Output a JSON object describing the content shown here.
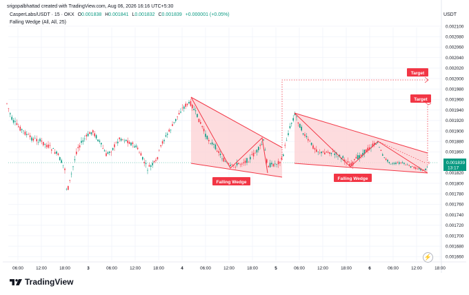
{
  "caption": "srigopalbhattad created with TradingView.com, Aug 06, 2026 16:16 UTC+5:30",
  "symbol": "CasperLabs/USDT · 15 · OKX",
  "ohlc": {
    "open_label": "O",
    "open": "0.001838",
    "high_label": "H",
    "high": "0.001841",
    "low_label": "L",
    "low": "0.001832",
    "close_label": "C",
    "close": "0.001839",
    "change": "+0.000001 (+0.05%)"
  },
  "indicator": "Falling Wedge (All, All, 25)",
  "currency": "USDT",
  "price_axis": [
    "0.002100",
    "0.002080",
    "0.002060",
    "0.002040",
    "0.002020",
    "0.002000",
    "0.001980",
    "0.001960",
    "0.001940",
    "0.001920",
    "0.001900",
    "0.001880",
    "0.001860",
    "0.001820",
    "0.001800",
    "0.001780",
    "0.001760",
    "0.001740",
    "0.001720",
    "0.001700",
    "0.001680",
    "0.001660"
  ],
  "last_price": {
    "price": "0.001839",
    "countdown": "13:17"
  },
  "time_axis": [
    "06:00",
    "12:00",
    "18:00",
    "3",
    "06:00",
    "12:00",
    "18:00",
    "4",
    "06:00",
    "12:00",
    "18:00",
    "5",
    "06:00",
    "12:00",
    "18:00",
    "6",
    "06:00",
    "12:00",
    "18:00"
  ],
  "labels": {
    "target_1": "Target",
    "target_2": "Target",
    "wedge_1": "Falling Wedge",
    "wedge_2": "Falling Wedge"
  },
  "colors": {
    "up": "#089981",
    "down": "#f23645",
    "pattern": "#f23645",
    "wedge_fill": "#fcd0d3"
  },
  "brand": "TradingView",
  "icons": {
    "logo": "tradingview-logo-icon",
    "flash": "lightning-icon"
  }
}
